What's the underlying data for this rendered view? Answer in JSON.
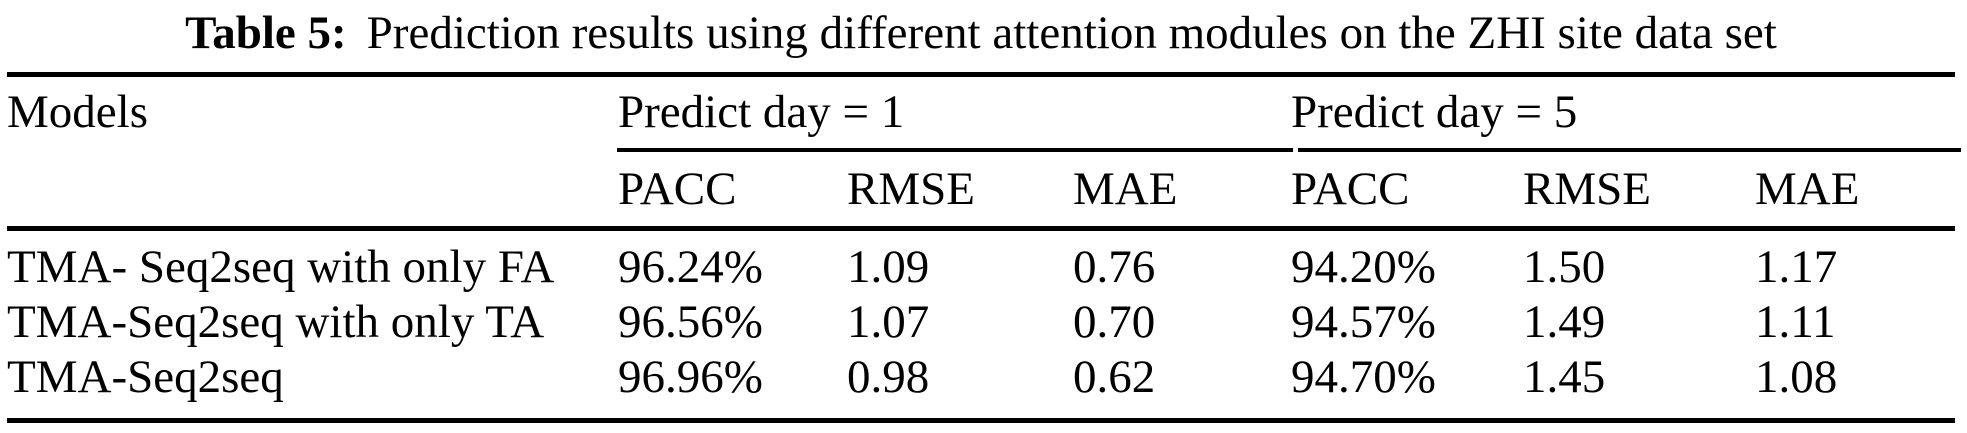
{
  "caption": {
    "label": "Table 5:",
    "text": "Prediction results using different attention modules on the ZHI site data set"
  },
  "table": {
    "models_header": "Models",
    "groups": [
      {
        "label": "Predict day = 1"
      },
      {
        "label": "Predict day = 5"
      }
    ],
    "subheaders": {
      "d1_pacc": "PACC",
      "d1_rmse": "RMSE",
      "d1_mae": "MAE",
      "d5_pacc": "PACC",
      "d5_rmse": "RMSE",
      "d5_mae": "MAE"
    },
    "rows": [
      {
        "model": "TMA- Seq2seq with only FA",
        "d1_pacc": "96.24%",
        "d1_rmse": "1.09",
        "d1_mae": "0.76",
        "d5_pacc": "94.20%",
        "d5_rmse": "1.50",
        "d5_mae": "1.17"
      },
      {
        "model": "TMA-Seq2seq with only TA",
        "d1_pacc": "96.56%",
        "d1_rmse": "1.07",
        "d1_mae": "0.70",
        "d5_pacc": "94.57%",
        "d5_rmse": "1.49",
        "d5_mae": "1.11"
      },
      {
        "model": "TMA-Seq2seq",
        "d1_pacc": "96.96%",
        "d1_rmse": "0.98",
        "d1_mae": "0.62",
        "d5_pacc": "94.70%",
        "d5_rmse": "1.45",
        "d5_mae": "1.08"
      }
    ]
  }
}
